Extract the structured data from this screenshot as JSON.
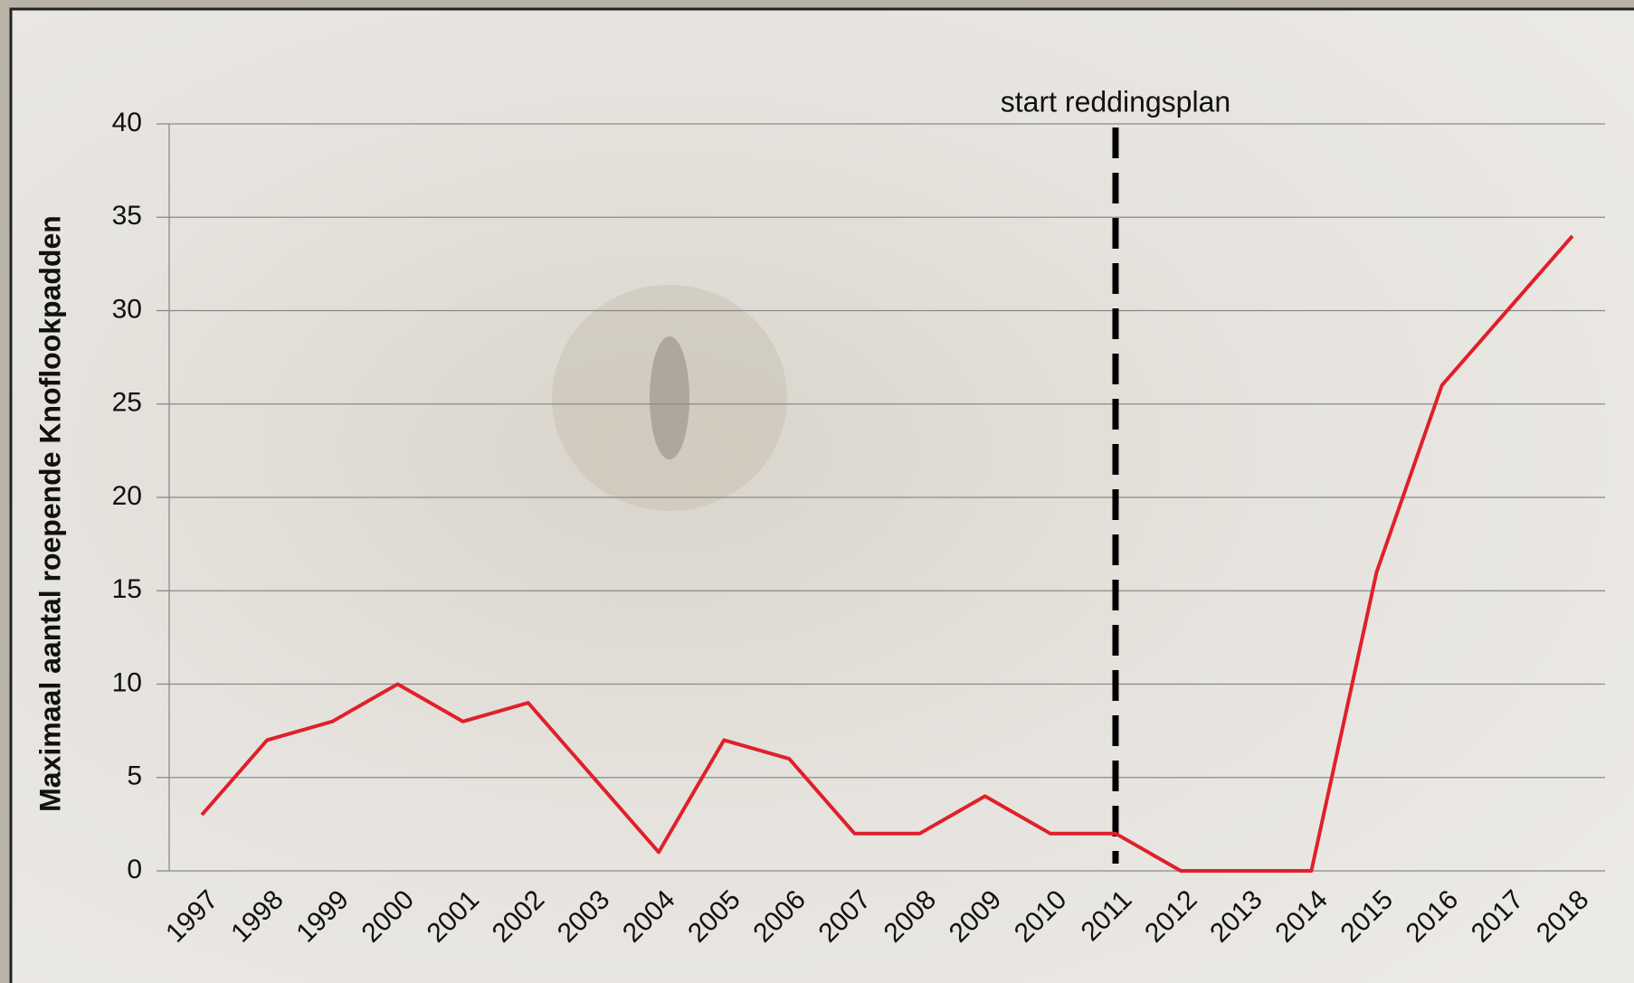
{
  "chart_data": {
    "type": "line",
    "y_label": "Maximaal aantal roepende Knoflookpadden",
    "categories": [
      "1997",
      "1998",
      "1999",
      "2000",
      "2001",
      "2002",
      "2003",
      "2004",
      "2005",
      "2006",
      "2007",
      "2008",
      "2009",
      "2010",
      "2011",
      "2012",
      "2013",
      "2014",
      "2015",
      "2016",
      "2017",
      "2018"
    ],
    "series": [
      {
        "color": "#e0202a",
        "values": [
          3,
          7,
          8,
          10,
          8,
          9,
          5,
          1,
          7,
          6,
          2,
          2,
          4,
          2,
          2,
          0,
          0,
          0,
          16,
          26,
          30,
          34
        ]
      }
    ],
    "ylim": [
      0,
      40
    ],
    "yticks": [
      0,
      5,
      10,
      15,
      20,
      25,
      30,
      35,
      40
    ],
    "grid": true,
    "annotation": {
      "text": "start reddingsplan",
      "at": "2011"
    }
  }
}
